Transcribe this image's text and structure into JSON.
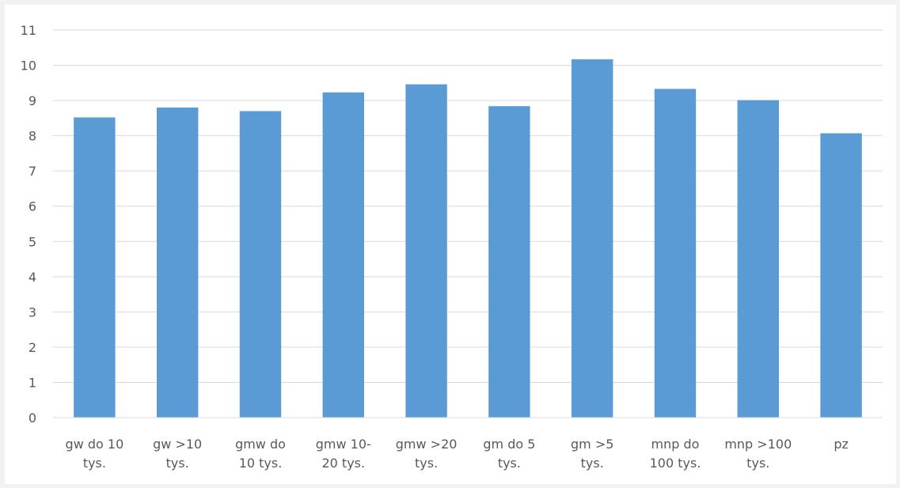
{
  "chart_data": {
    "type": "bar",
    "title": "",
    "xlabel": "",
    "ylabel": "",
    "categories": [
      [
        "gw do 10",
        "tys."
      ],
      [
        "gw >10",
        "tys."
      ],
      [
        "gmw do",
        "10 tys."
      ],
      [
        "gmw 10-",
        "20 tys."
      ],
      [
        "gmw >20",
        "tys."
      ],
      [
        "gm do 5",
        "tys."
      ],
      [
        "gm >5",
        "tys."
      ],
      [
        "mnp do",
        "100 tys."
      ],
      [
        "mnp >100",
        "tys."
      ],
      [
        "pz"
      ]
    ],
    "values": [
      8.52,
      8.8,
      8.7,
      9.23,
      9.46,
      8.84,
      10.17,
      9.33,
      9.01,
      8.07
    ],
    "ylim": [
      0,
      11
    ],
    "yticks": [
      0,
      1,
      2,
      3,
      4,
      5,
      6,
      7,
      8,
      9,
      10,
      11
    ],
    "grid": true,
    "legend": "none",
    "colors": {
      "bar": "#5b9bd5",
      "grid": "#d9d9d9",
      "axis": "#d9d9d9",
      "text": "#595959",
      "plot_background": "#ffffff",
      "page_background": "#f2f2f2"
    }
  }
}
